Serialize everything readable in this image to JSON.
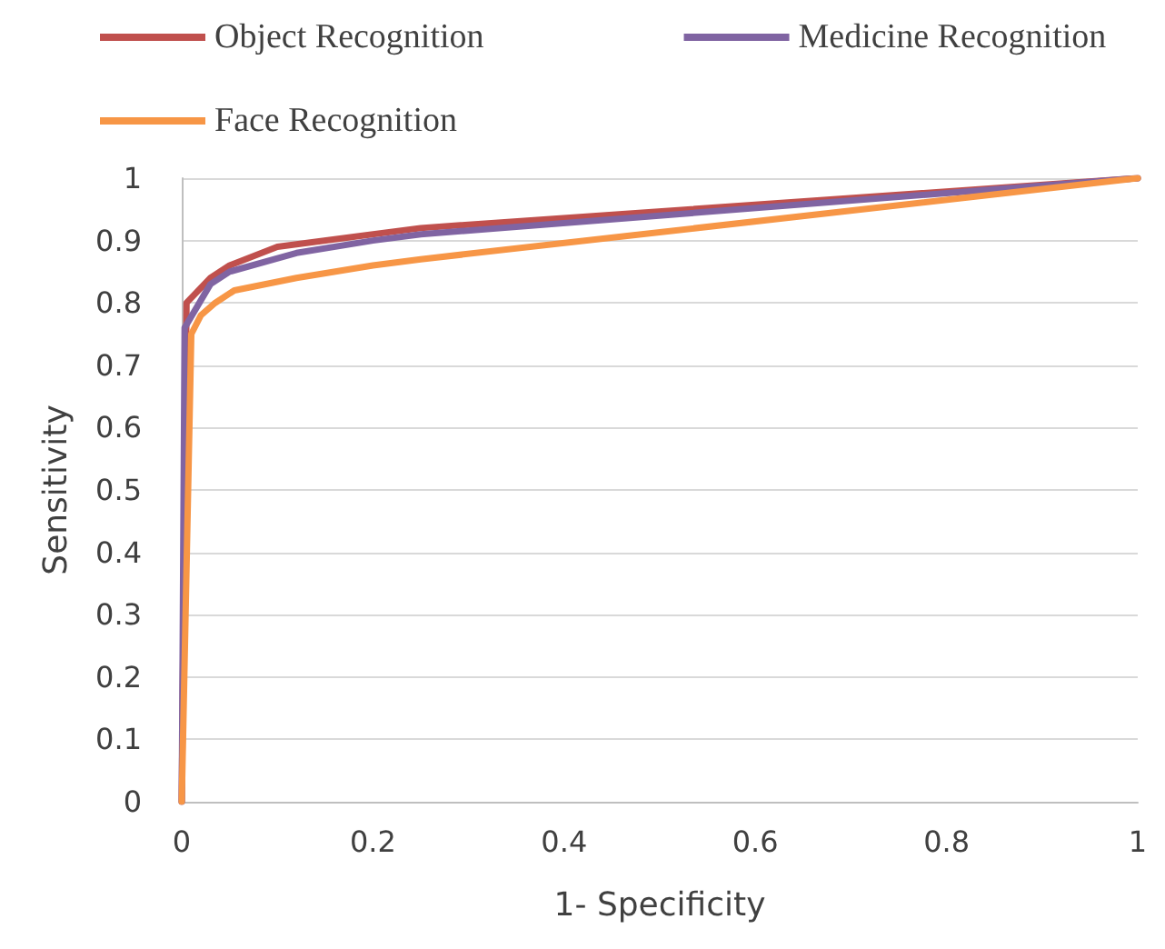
{
  "chart_data": {
    "type": "line",
    "xlabel": "1- Specificity",
    "ylabel": "Sensitivity",
    "xlim": [
      0,
      1
    ],
    "xticks": [
      0,
      0.2,
      0.4,
      0.6,
      0.8,
      1
    ],
    "ylim": [
      0,
      1
    ],
    "yticks": [
      0,
      0.1,
      0.2,
      0.3,
      0.4,
      0.5,
      0.6,
      0.7,
      0.8,
      0.9,
      1
    ],
    "grid": "y",
    "legend": "top",
    "marker": "none",
    "line_style": "solid",
    "series": [
      {
        "name": "Object Recognition",
        "color": "#c0504d",
        "x": [
          0,
          0.005,
          0.03,
          0.05,
          0.1,
          0.25,
          1
        ],
        "values": [
          0,
          0.8,
          0.84,
          0.86,
          0.89,
          0.92,
          1
        ]
      },
      {
        "name": "Medicine Recognition",
        "color": "#8064a2",
        "x": [
          0,
          0.003,
          0.03,
          0.05,
          0.12,
          0.2,
          0.25,
          1
        ],
        "values": [
          0,
          0.76,
          0.83,
          0.85,
          0.88,
          0.9,
          0.91,
          1
        ]
      },
      {
        "name": "Face Recognition",
        "color": "#f79646",
        "x": [
          0,
          0.01,
          0.02,
          0.035,
          0.055,
          0.12,
          0.2,
          0.25,
          1
        ],
        "values": [
          0,
          0.75,
          0.78,
          0.8,
          0.82,
          0.84,
          0.86,
          0.87,
          1
        ]
      }
    ]
  }
}
